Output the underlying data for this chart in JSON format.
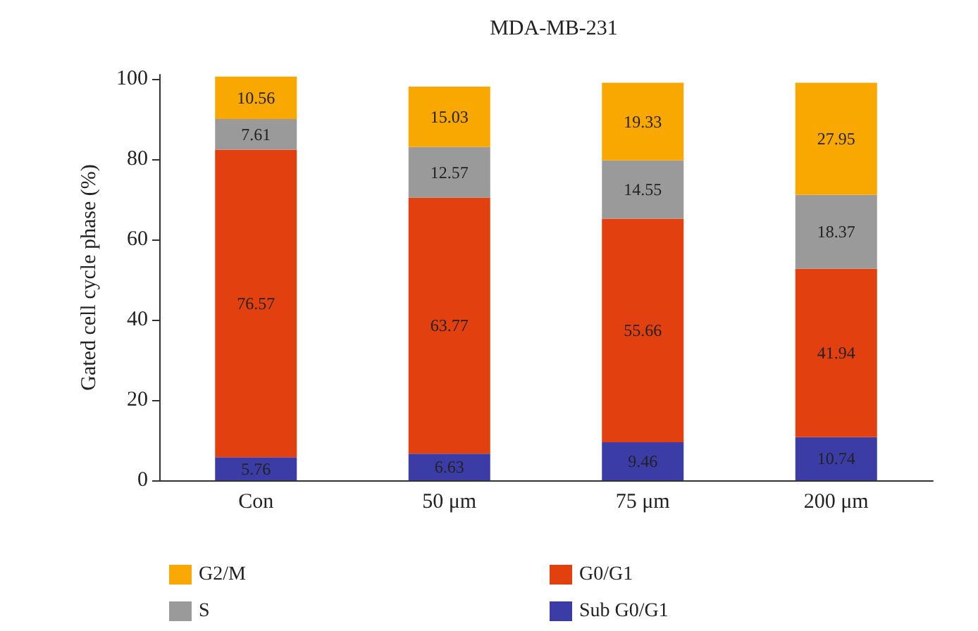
{
  "chart_data": {
    "type": "bar",
    "title": "MDA-MB-231",
    "ylabel": "Gated cell cycle phase (%)",
    "categories": [
      "Con",
      "50 μm",
      "75 μm",
      "200 μm"
    ],
    "stacked": true,
    "data_labels": true,
    "legend": "bottom",
    "grid": false,
    "ylim": [
      0,
      101
    ],
    "yticks": [
      0,
      20,
      40,
      60,
      80,
      100
    ],
    "series": [
      {
        "name": "Sub G0/G1",
        "color": "#3b3ca6",
        "values": [
          5.76,
          6.63,
          9.46,
          10.74
        ]
      },
      {
        "name": "G0/G1",
        "color": "#e2410f",
        "values": [
          76.57,
          63.77,
          55.66,
          41.94
        ]
      },
      {
        "name": "S",
        "color": "#9a9a9a",
        "values": [
          7.61,
          12.57,
          14.55,
          18.37
        ]
      },
      {
        "name": "G2/M",
        "color": "#f8a800",
        "values": [
          10.56,
          15.03,
          19.33,
          27.95
        ]
      }
    ]
  }
}
